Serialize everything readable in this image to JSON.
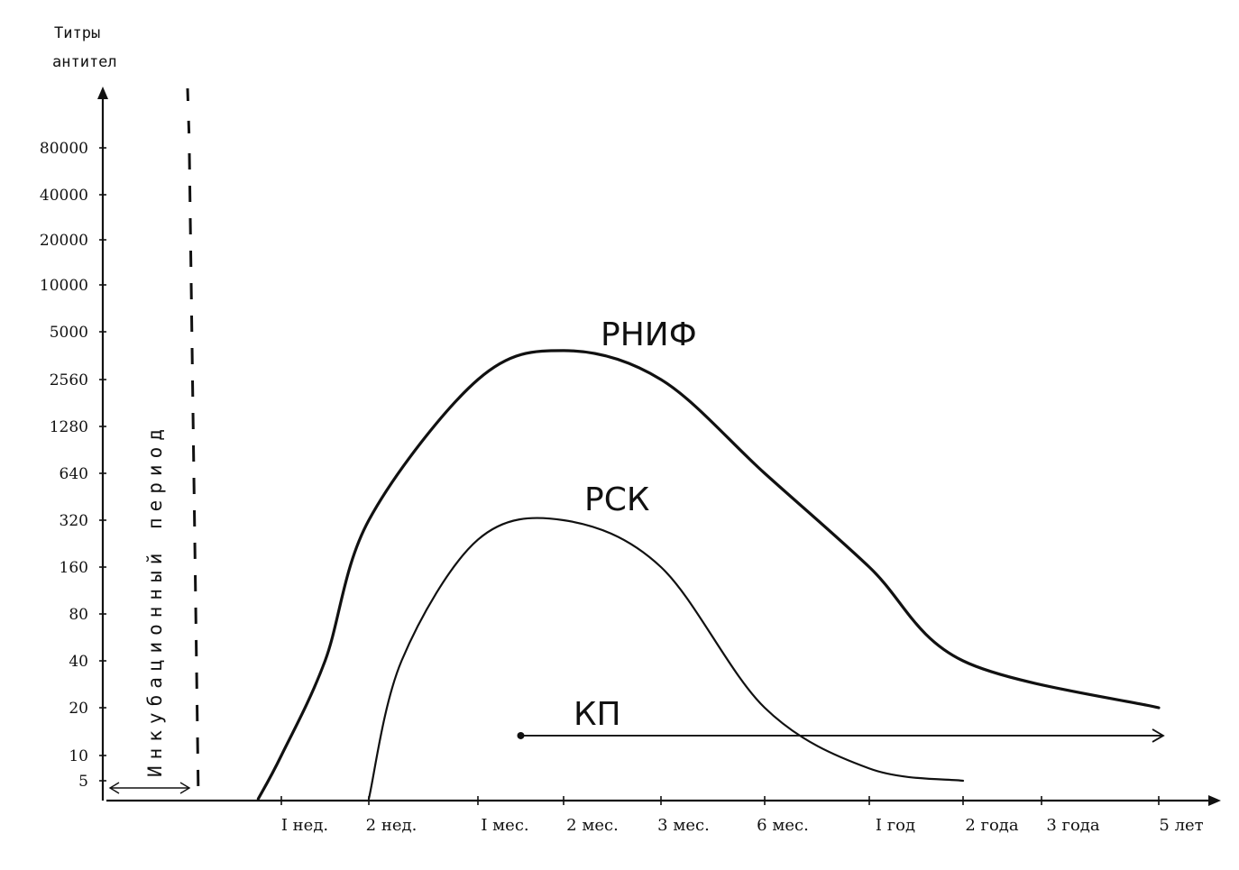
{
  "chart_data": {
    "type": "line",
    "y_title_line1": "Титры",
    "y_title_line2": "антител",
    "y_ticks": [
      "80000",
      "40000",
      "20000",
      "10000",
      "5000",
      "2560",
      "1280",
      "640",
      "320",
      "160",
      "80",
      "40",
      "20",
      "10",
      "5"
    ],
    "x_ticks": [
      "I нед.",
      "2 нед.",
      "I мес.",
      "2 мес.",
      "3 мес.",
      "6 мес.",
      "I год",
      "2 года",
      "3 года",
      "5 лет"
    ],
    "period_label": "Инкубационный период",
    "series": [
      {
        "name": "РНИФ",
        "points": [
          [
            "0.6 нед.",
            5
          ],
          [
            "I нед.",
            10
          ],
          [
            "1.5 нед.",
            40
          ],
          [
            "2 нед.",
            320
          ],
          [
            "I мес.",
            2560
          ],
          [
            "2 мес.",
            3840
          ],
          [
            "3 мес.",
            2560
          ],
          [
            "6 мес.",
            640
          ],
          [
            "I год",
            160
          ],
          [
            "2 года",
            40
          ],
          [
            "5 лет",
            20
          ]
        ]
      },
      {
        "name": "РСК",
        "points": [
          [
            "2 нед.",
            5
          ],
          [
            "2.3 нед.",
            40
          ],
          [
            "I мес.",
            240
          ],
          [
            "2 мес.",
            320
          ],
          [
            "3 мес.",
            160
          ],
          [
            "6 мес.",
            20
          ],
          [
            "I год",
            7
          ],
          [
            "2 года",
            5
          ]
        ]
      },
      {
        "name": "КП",
        "range": [
          "1.5 мес.",
          "5 лет"
        ],
        "value": 13
      }
    ]
  }
}
